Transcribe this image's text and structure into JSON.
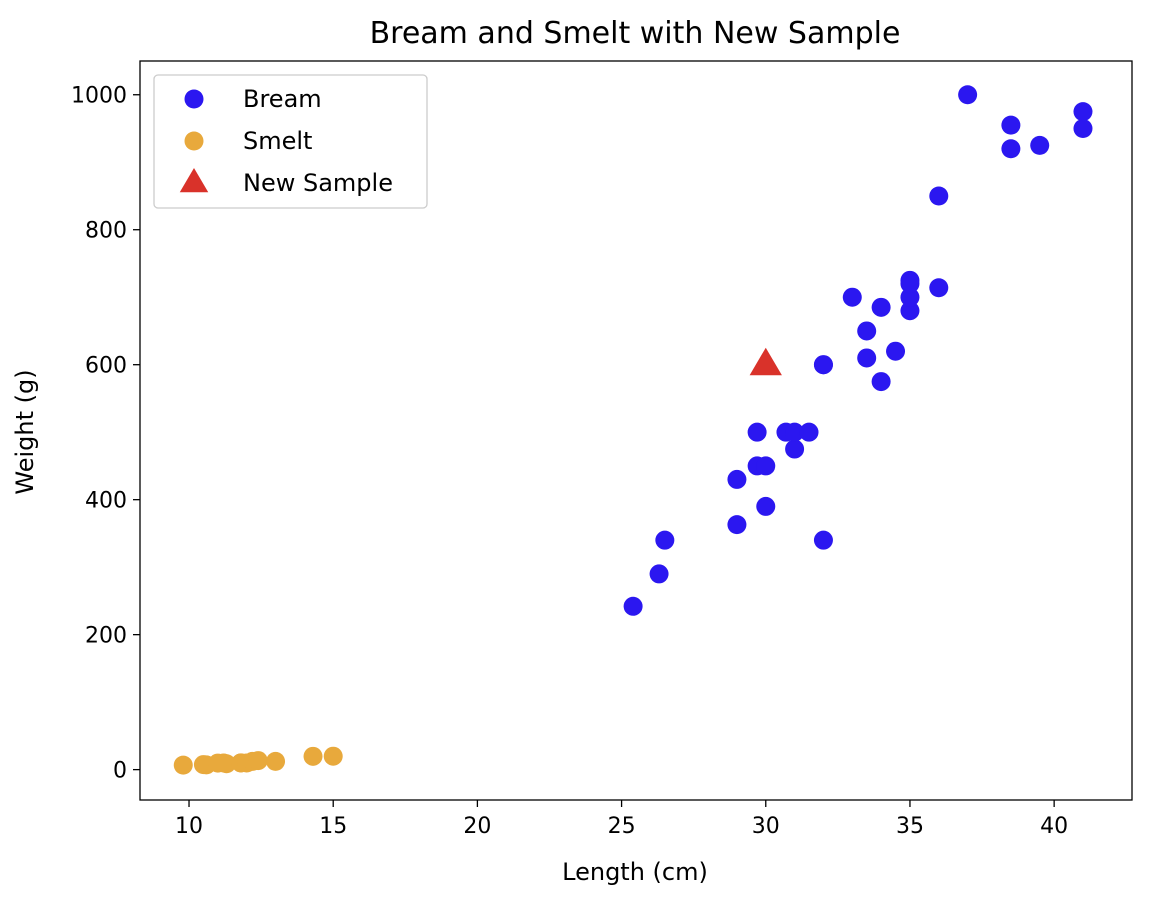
{
  "chart_data": {
    "type": "scatter",
    "title": "Bream and Smelt with New Sample",
    "xlabel": "Length (cm)",
    "ylabel": "Weight (g)",
    "xlim": [
      8.3,
      42.7
    ],
    "ylim": [
      -45,
      1050
    ],
    "xticks": [
      10,
      15,
      20,
      25,
      30,
      35,
      40
    ],
    "yticks": [
      0,
      200,
      400,
      600,
      800,
      1000
    ],
    "grid": false,
    "legend_position": "upper-left",
    "series": [
      {
        "name": "Bream",
        "marker": "circle",
        "color": "#2B17F0",
        "points": [
          [
            25.4,
            242
          ],
          [
            26.3,
            290
          ],
          [
            26.5,
            340
          ],
          [
            29.0,
            363
          ],
          [
            29.0,
            430
          ],
          [
            29.7,
            450
          ],
          [
            29.7,
            500
          ],
          [
            30.0,
            390
          ],
          [
            30.0,
            450
          ],
          [
            30.7,
            500
          ],
          [
            31.0,
            475
          ],
          [
            31.0,
            500
          ],
          [
            31.5,
            500
          ],
          [
            32.0,
            340
          ],
          [
            32.0,
            600
          ],
          [
            32.0,
            600
          ],
          [
            33.0,
            700
          ],
          [
            33.5,
            610
          ],
          [
            33.5,
            650
          ],
          [
            34.0,
            575
          ],
          [
            34.0,
            685
          ],
          [
            34.5,
            620
          ],
          [
            35.0,
            680
          ],
          [
            35.0,
            700
          ],
          [
            35.0,
            725
          ],
          [
            35.0,
            720
          ],
          [
            36.0,
            714
          ],
          [
            36.0,
            850
          ],
          [
            37.0,
            1000
          ],
          [
            38.5,
            920
          ],
          [
            38.5,
            955
          ],
          [
            39.5,
            925
          ],
          [
            41.0,
            975
          ],
          [
            41.0,
            950
          ]
        ]
      },
      {
        "name": "Smelt",
        "marker": "circle",
        "color": "#E8A93C",
        "points": [
          [
            9.8,
            6.7
          ],
          [
            10.5,
            7.5
          ],
          [
            10.6,
            7.0
          ],
          [
            11.0,
            9.7
          ],
          [
            11.2,
            9.8
          ],
          [
            11.3,
            8.7
          ],
          [
            11.8,
            10.0
          ],
          [
            11.8,
            9.9
          ],
          [
            12.0,
            9.8
          ],
          [
            12.2,
            12.2
          ],
          [
            12.4,
            13.4
          ],
          [
            13.0,
            12.2
          ],
          [
            14.3,
            19.7
          ],
          [
            15.0,
            19.9
          ]
        ]
      },
      {
        "name": "New Sample",
        "marker": "triangle",
        "color": "#D9322A",
        "points": [
          [
            30.0,
            600
          ]
        ]
      }
    ]
  }
}
